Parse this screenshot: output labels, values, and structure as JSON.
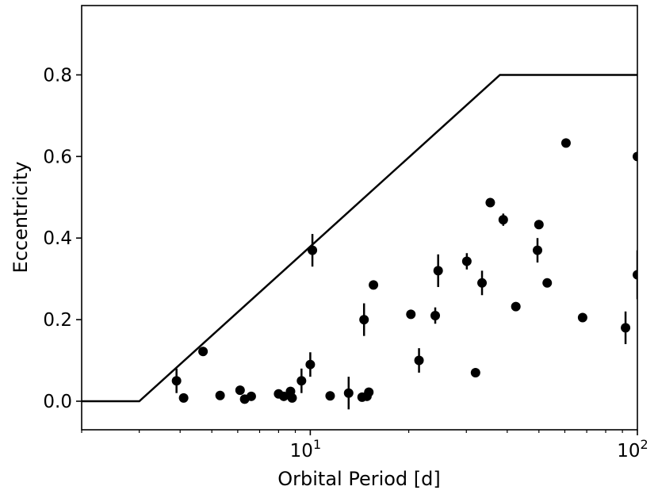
{
  "chart_data": {
    "type": "scatter",
    "xlabel": "Orbital Period [d]",
    "ylabel": "Eccentricity",
    "xscale": "log",
    "xlim": [
      2.0,
      100
    ],
    "ylim": [
      -0.07,
      0.97
    ],
    "grid": false,
    "x_ticks": [
      {
        "value": 10,
        "base": "10",
        "exp": "1"
      },
      {
        "value": 100,
        "base": "10",
        "exp": "2"
      }
    ],
    "y_ticks": [
      {
        "value": 0.0,
        "label": "0.0"
      },
      {
        "value": 0.2,
        "label": "0.2"
      },
      {
        "value": 0.4,
        "label": "0.4"
      },
      {
        "value": 0.6,
        "label": "0.6"
      },
      {
        "value": 0.8,
        "label": "0.8"
      }
    ],
    "envelope": {
      "x": [
        2.0,
        3.0,
        38.0,
        100
      ],
      "y": [
        0.0,
        0.0,
        0.8,
        0.8
      ]
    },
    "points": [
      {
        "x": 3.9,
        "y": 0.05,
        "err": 0.03
      },
      {
        "x": 4.1,
        "y": 0.008,
        "err": 0
      },
      {
        "x": 4.7,
        "y": 0.122,
        "err": 0
      },
      {
        "x": 5.3,
        "y": 0.014,
        "err": 0
      },
      {
        "x": 6.1,
        "y": 0.027,
        "err": 0
      },
      {
        "x": 6.3,
        "y": 0.005,
        "err": 0
      },
      {
        "x": 6.6,
        "y": 0.012,
        "err": 0
      },
      {
        "x": 8.0,
        "y": 0.018,
        "err": 0
      },
      {
        "x": 8.3,
        "y": 0.012,
        "err": 0.01
      },
      {
        "x": 8.7,
        "y": 0.024,
        "err": 0.01
      },
      {
        "x": 8.8,
        "y": 0.008,
        "err": 0
      },
      {
        "x": 9.4,
        "y": 0.05,
        "err": 0.03
      },
      {
        "x": 10.0,
        "y": 0.09,
        "err": 0.03
      },
      {
        "x": 10.15,
        "y": 0.37,
        "err": 0.04
      },
      {
        "x": 11.5,
        "y": 0.013,
        "err": 0
      },
      {
        "x": 13.1,
        "y": 0.02,
        "err": 0.04
      },
      {
        "x": 14.4,
        "y": 0.01,
        "err": 0
      },
      {
        "x": 14.6,
        "y": 0.2,
        "err": 0.04
      },
      {
        "x": 14.9,
        "y": 0.012,
        "err": 0.01
      },
      {
        "x": 15.1,
        "y": 0.022,
        "err": 0.01
      },
      {
        "x": 15.6,
        "y": 0.285,
        "err": 0
      },
      {
        "x": 20.3,
        "y": 0.213,
        "err": 0.01
      },
      {
        "x": 21.5,
        "y": 0.1,
        "err": 0.03
      },
      {
        "x": 24.1,
        "y": 0.21,
        "err": 0.02
      },
      {
        "x": 24.6,
        "y": 0.32,
        "err": 0.04
      },
      {
        "x": 30.1,
        "y": 0.343,
        "err": 0.02
      },
      {
        "x": 32.0,
        "y": 0.07,
        "err": 0.01
      },
      {
        "x": 33.5,
        "y": 0.29,
        "err": 0.03
      },
      {
        "x": 35.5,
        "y": 0.487,
        "err": 0
      },
      {
        "x": 38.9,
        "y": 0.445,
        "err": 0.015
      },
      {
        "x": 42.5,
        "y": 0.232,
        "err": 0
      },
      {
        "x": 49.5,
        "y": 0.37,
        "err": 0.03
      },
      {
        "x": 50.0,
        "y": 0.433,
        "err": 0
      },
      {
        "x": 53.0,
        "y": 0.29,
        "err": 0
      },
      {
        "x": 60.5,
        "y": 0.633,
        "err": 0
      },
      {
        "x": 68.0,
        "y": 0.205,
        "err": 0
      },
      {
        "x": 92.0,
        "y": 0.18,
        "err": 0.04
      },
      {
        "x": 100,
        "y": 0.6,
        "err": 0
      },
      {
        "x": 100,
        "y": 0.31,
        "err": 0.06
      }
    ]
  }
}
